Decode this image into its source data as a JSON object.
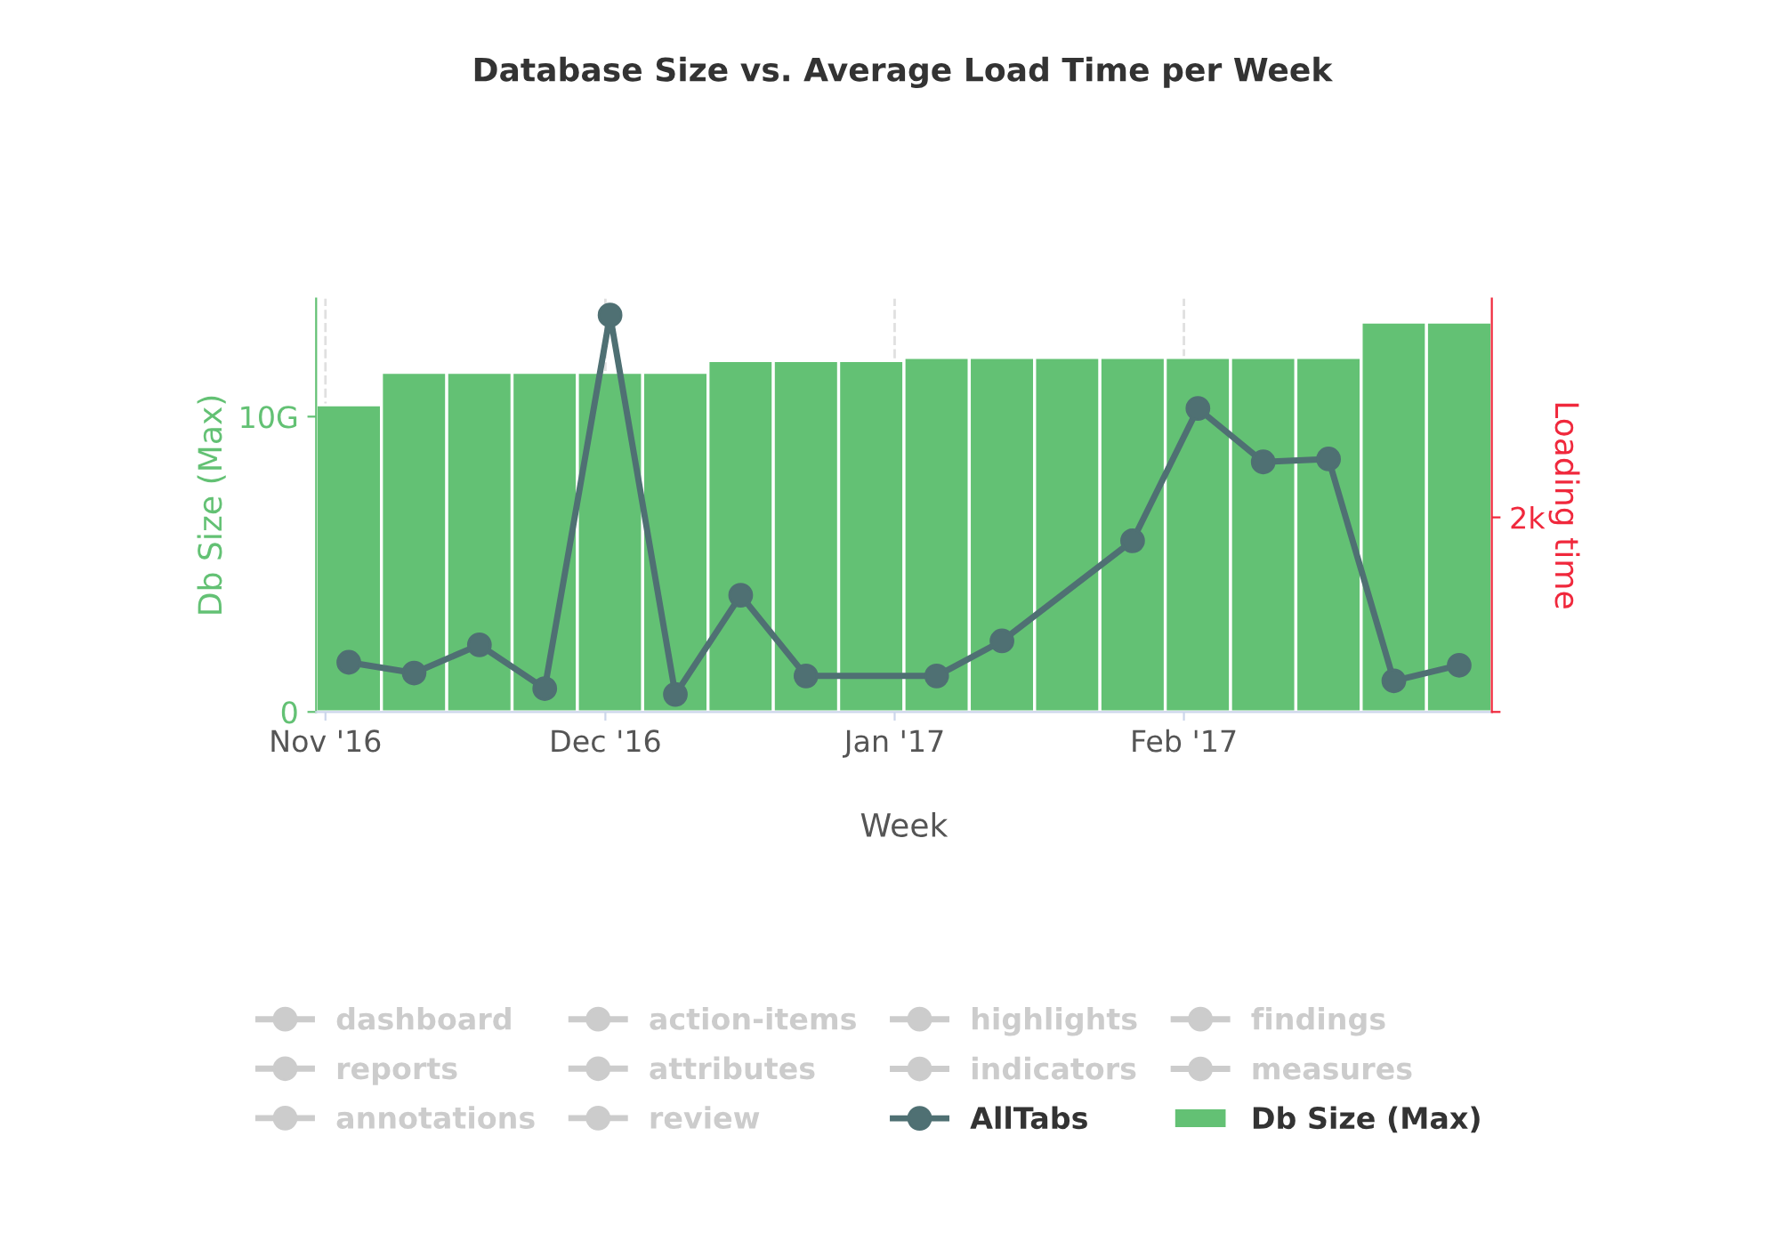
{
  "chart_data": {
    "type": "bar",
    "title": "Database Size vs. Average Load Time per Week",
    "xlabel": "Week",
    "ylabel": "Db Size (Max)",
    "y2label": "Loading time",
    "x": [
      "2016-11-03T12:00",
      "2016-11-10T12:00",
      "2016-11-17T12:00",
      "2016-11-24T12:00",
      "2016-12-01T12:00",
      "2016-12-08T12:00",
      "2016-12-15T12:00",
      "2016-12-22T12:00",
      "2016-12-29T12:00",
      "2017-01-05T12:00",
      "2017-01-12T12:00",
      "2017-01-19T12:00",
      "2017-01-26T12:00",
      "2017-02-02T12:00",
      "2017-02-09T12:00",
      "2017-02-16T12:00",
      "2017-02-23T12:00",
      "2017-03-02T12:00"
    ],
    "xlim": [
      "2016-10-31",
      "2017-03-06"
    ],
    "xticks": [
      {
        "value": "2016-11-01",
        "label": "Nov '16"
      },
      {
        "value": "2016-12-01",
        "label": "Dec '16"
      },
      {
        "value": "2017-01-01",
        "label": "Jan '17"
      },
      {
        "value": "2017-02-01",
        "label": "Feb '17"
      }
    ],
    "ylim": [
      0,
      14
    ],
    "yticks": [
      0,
      {
        "value": 10,
        "label": "10G"
      }
    ],
    "y2lim": [
      0,
      4250
    ],
    "y2ticks": [
      {
        "value": 0,
        "label": null
      },
      {
        "value": 2000,
        "label": "2k"
      }
    ],
    "grid": "x",
    "legend": "bottom",
    "series": [
      {
        "name": "dashboard",
        "color": "#cccccc",
        "type": "line",
        "values": [
          null,
          null,
          null,
          null,
          null,
          null,
          null,
          null,
          null,
          null,
          null,
          null,
          null,
          null,
          null,
          null,
          null,
          null
        ]
      },
      {
        "name": "action-items",
        "color": "#cccccc",
        "type": "line",
        "values": [
          null,
          null,
          null,
          null,
          null,
          null,
          null,
          null,
          null,
          null,
          null,
          null,
          null,
          null,
          null,
          null,
          null,
          null
        ]
      },
      {
        "name": "highlights",
        "color": "#cccccc",
        "type": "line",
        "values": [
          null,
          null,
          null,
          null,
          null,
          null,
          null,
          null,
          null,
          null,
          null,
          null,
          null,
          null,
          null,
          null,
          null,
          null
        ]
      },
      {
        "name": "findings",
        "color": "#cccccc",
        "type": "line",
        "values": [
          null,
          null,
          null,
          null,
          null,
          null,
          null,
          null,
          null,
          null,
          null,
          null,
          null,
          null,
          null,
          null,
          null,
          null
        ]
      },
      {
        "name": "reports",
        "color": "#cccccc",
        "type": "line",
        "values": [
          null,
          null,
          null,
          null,
          null,
          null,
          null,
          null,
          null,
          null,
          null,
          null,
          null,
          null,
          null,
          null,
          null,
          null
        ]
      },
      {
        "name": "attributes",
        "color": "#cccccc",
        "type": "line",
        "values": [
          null,
          null,
          null,
          null,
          null,
          null,
          null,
          null,
          null,
          null,
          null,
          null,
          null,
          null,
          null,
          null,
          null,
          null
        ]
      },
      {
        "name": "indicators",
        "color": "#cccccc",
        "type": "line",
        "values": [
          null,
          null,
          null,
          null,
          null,
          null,
          null,
          null,
          null,
          null,
          null,
          null,
          null,
          null,
          null,
          null,
          null,
          null
        ]
      },
      {
        "name": "measures",
        "color": "#cccccc",
        "type": "line",
        "values": [
          null,
          null,
          null,
          null,
          null,
          null,
          null,
          null,
          null,
          null,
          null,
          null,
          null,
          null,
          null,
          null,
          null,
          null
        ]
      },
      {
        "name": "annotations",
        "color": "#cccccc",
        "type": "line",
        "values": [
          null,
          null,
          null,
          null,
          null,
          null,
          null,
          null,
          null,
          null,
          null,
          null,
          null,
          null,
          null,
          null,
          null,
          null
        ]
      },
      {
        "name": "review",
        "color": "#cccccc",
        "type": "line",
        "values": [
          null,
          null,
          null,
          null,
          null,
          null,
          null,
          null,
          null,
          null,
          null,
          null,
          null,
          null,
          null,
          null,
          null,
          null
        ]
      },
      {
        "name": "AllTabs",
        "color": "#4f7073",
        "type": "line",
        "axis": "y2",
        "marker": "circle",
        "x": [
          "2016-11-03T12:00",
          "2016-11-10T12:00",
          "2016-11-17T12:00",
          "2016-11-24T12:00",
          "2016-12-01T12:00",
          "2016-12-08T12:00",
          "2016-12-15T12:00",
          "2016-12-22T12:00",
          "2017-01-05T12:00",
          "2017-01-12T12:00",
          "2017-01-26T12:00",
          "2017-02-02T12:00",
          "2017-02-09T12:00",
          "2017-02-16T12:00",
          "2017-02-23T12:00",
          "2017-03-02T12:00"
        ],
        "values": [
          510,
          400,
          690,
          240,
          4080,
          180,
          1200,
          370,
          370,
          730,
          1760,
          3120,
          2570,
          2600,
          320,
          480
        ]
      },
      {
        "name": "Db Size (Max)",
        "color": "#63c174",
        "values": [
          10.4,
          11.5,
          11.5,
          11.5,
          11.5,
          11.5,
          11.9,
          11.9,
          11.9,
          12.0,
          12.0,
          12.0,
          12.0,
          12.0,
          12.0,
          12.0,
          13.2,
          13.2
        ]
      }
    ]
  }
}
